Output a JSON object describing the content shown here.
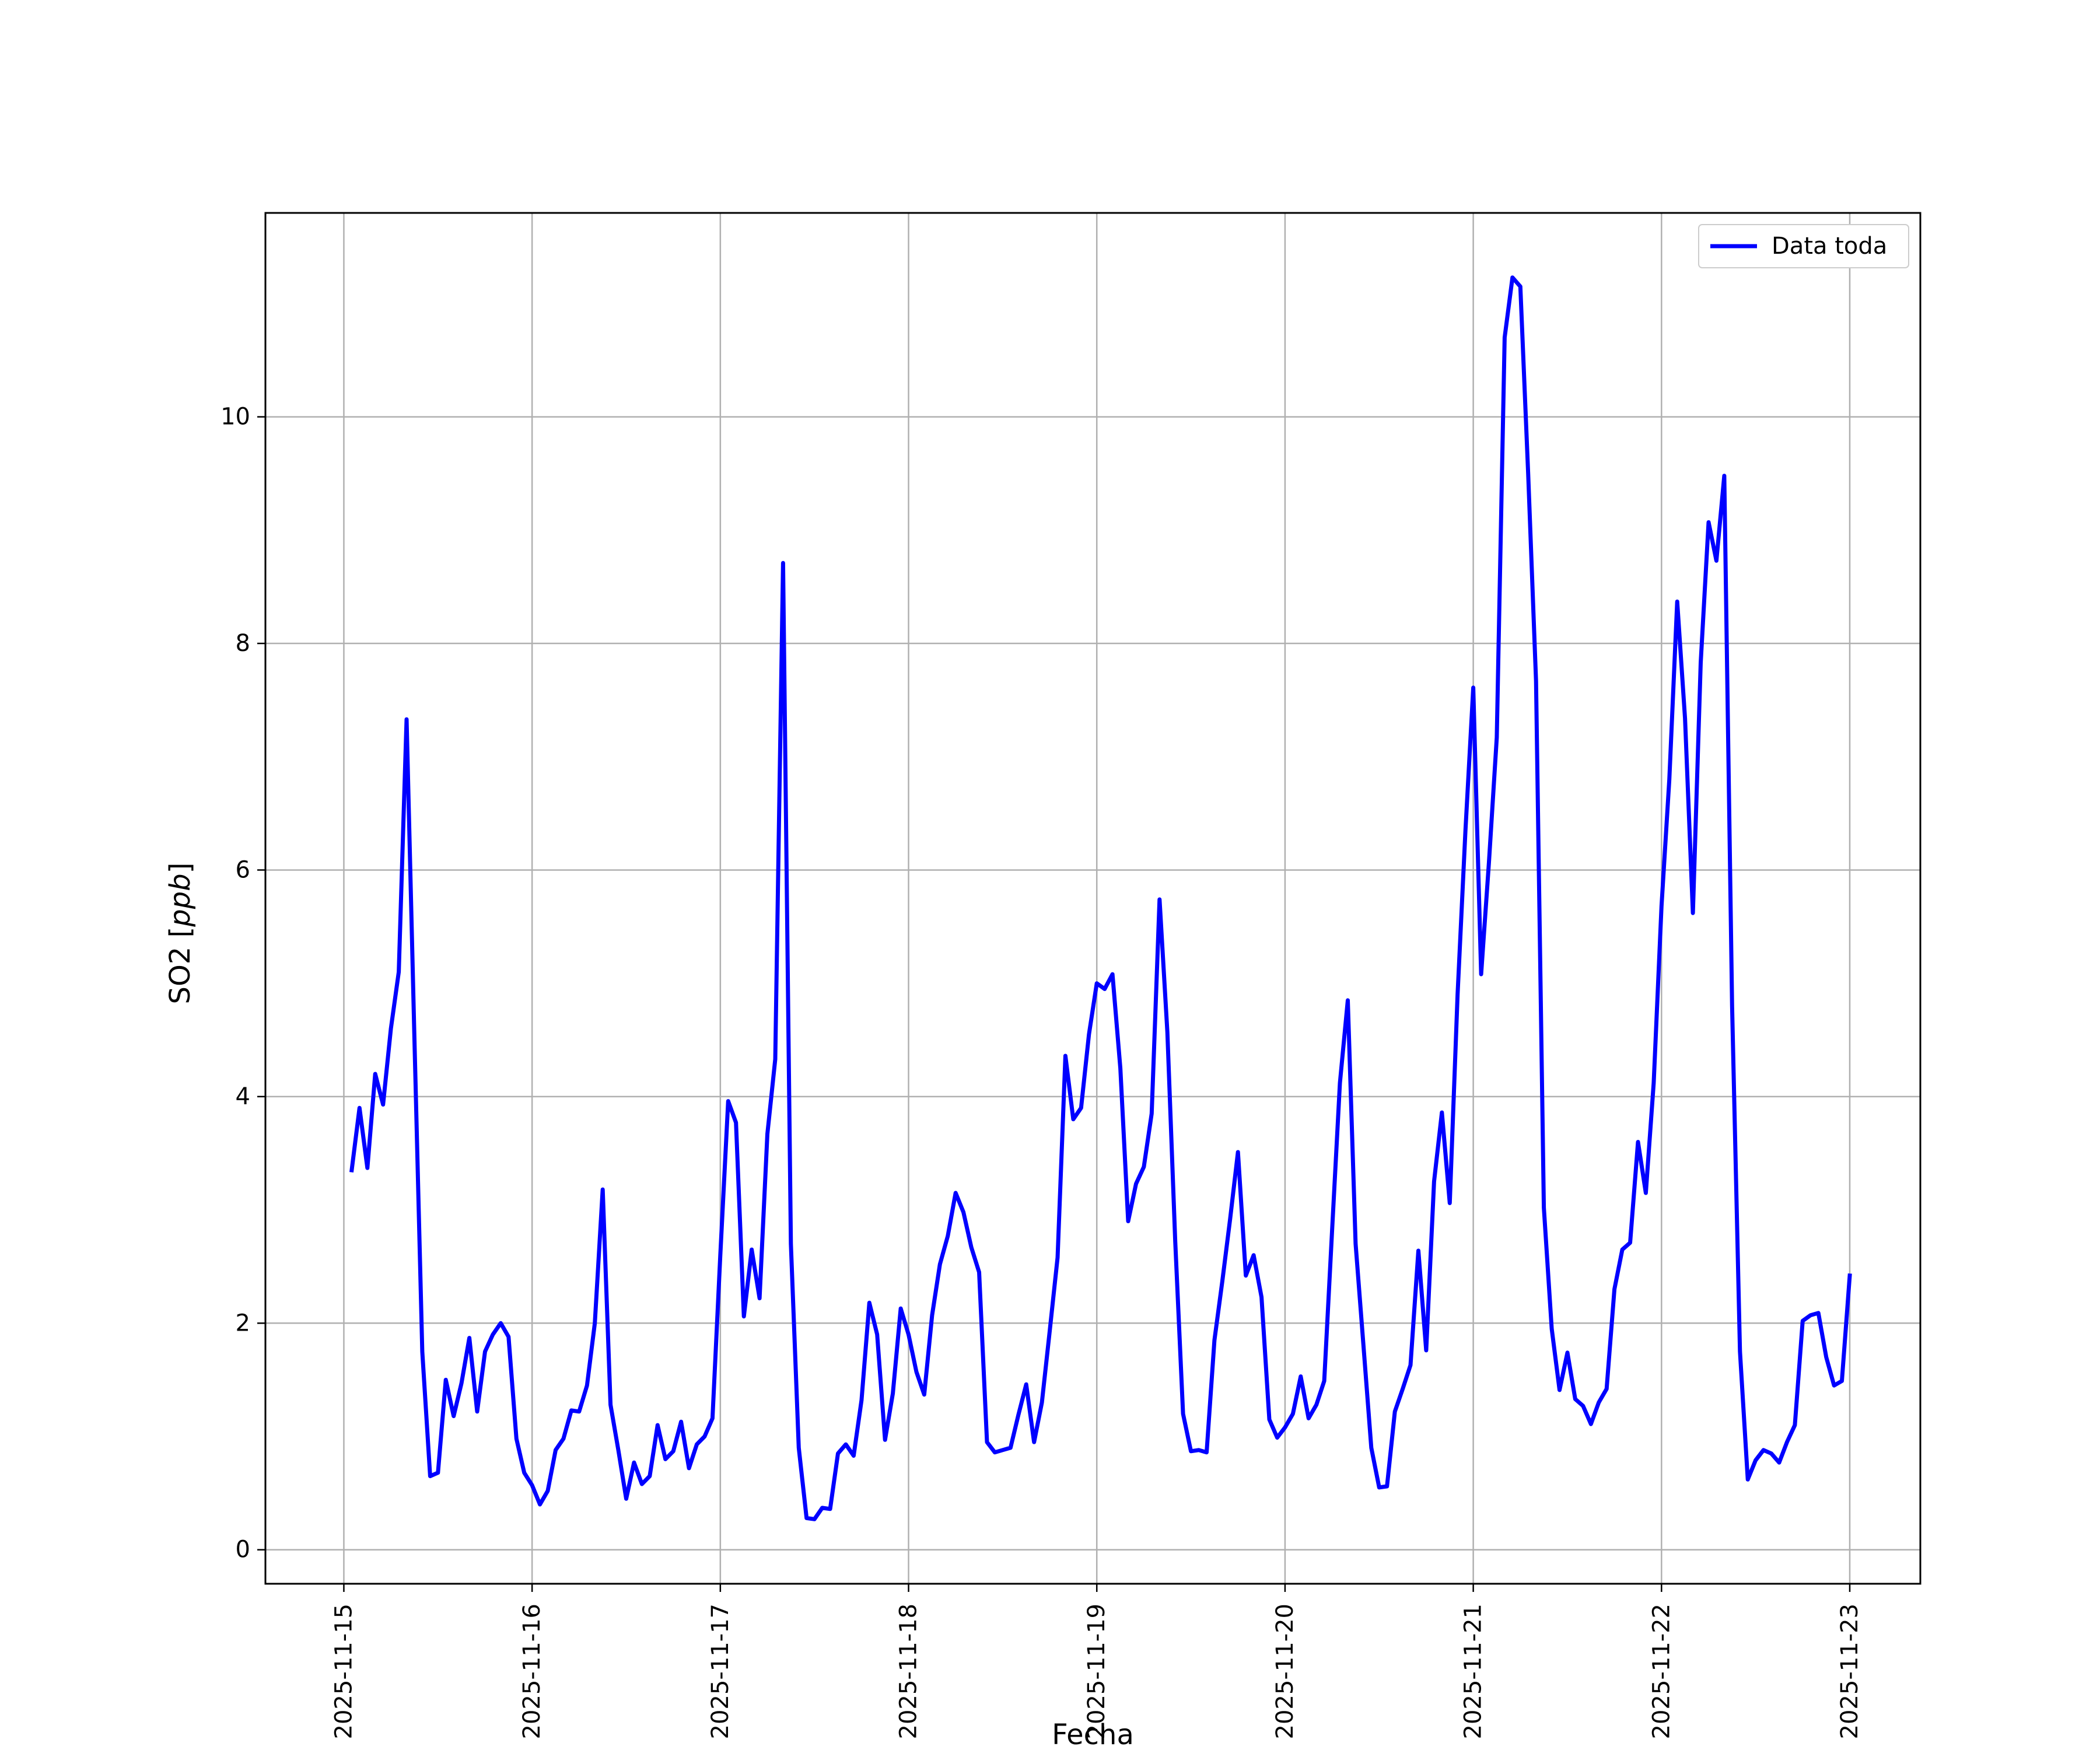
{
  "chart_data": {
    "type": "line",
    "title": "",
    "xlabel": "Fecha",
    "ylabel_main": "SO2 [",
    "ylabel_italic": "ppb",
    "ylabel_end": "]",
    "x_tick_labels": [
      "2025-11-15",
      "2025-11-16",
      "2025-11-17",
      "2025-11-18",
      "2025-11-19",
      "2025-11-20",
      "2025-11-21",
      "2025-11-22",
      "2025-11-23"
    ],
    "y_ticks": [
      0,
      2,
      4,
      6,
      8,
      10
    ],
    "y_tick_labels": [
      "0",
      "2",
      "4",
      "6",
      "8",
      "10"
    ],
    "xlim": [
      "2025-11-14 14:00",
      "2025-11-23 09:00"
    ],
    "ylim": [
      -0.3,
      11.8
    ],
    "grid": true,
    "legend": {
      "placement": "top-right",
      "entries": [
        "Data toda"
      ]
    },
    "colors": {
      "series": "#0000ff",
      "grid": "#b0b0b0",
      "axes": "#000000"
    },
    "series": [
      {
        "name": "Data toda",
        "x": [
          "2025-11-15 01:00",
          "2025-11-15 02:00",
          "2025-11-15 03:00",
          "2025-11-15 04:00",
          "2025-11-15 05:00",
          "2025-11-15 06:00",
          "2025-11-15 07:00",
          "2025-11-15 08:00",
          "2025-11-15 09:00",
          "2025-11-15 10:00",
          "2025-11-15 11:00",
          "2025-11-15 12:00",
          "2025-11-15 13:00",
          "2025-11-15 14:00",
          "2025-11-15 15:00",
          "2025-11-15 16:00",
          "2025-11-15 17:00",
          "2025-11-15 18:00",
          "2025-11-15 19:00",
          "2025-11-15 20:00",
          "2025-11-15 21:00",
          "2025-11-15 22:00",
          "2025-11-15 23:00",
          "2025-11-16 00:00",
          "2025-11-16 01:00",
          "2025-11-16 02:00",
          "2025-11-16 03:00",
          "2025-11-16 04:00",
          "2025-11-16 05:00",
          "2025-11-16 06:00",
          "2025-11-16 07:00",
          "2025-11-16 08:00",
          "2025-11-16 09:00",
          "2025-11-16 10:00",
          "2025-11-16 11:00",
          "2025-11-16 12:00",
          "2025-11-16 13:00",
          "2025-11-16 14:00",
          "2025-11-16 15:00",
          "2025-11-16 16:00",
          "2025-11-16 17:00",
          "2025-11-16 18:00",
          "2025-11-16 19:00",
          "2025-11-16 20:00",
          "2025-11-16 21:00",
          "2025-11-16 22:00",
          "2025-11-16 23:00",
          "2025-11-17 00:00",
          "2025-11-17 01:00",
          "2025-11-17 02:00",
          "2025-11-17 03:00",
          "2025-11-17 04:00",
          "2025-11-17 05:00",
          "2025-11-17 06:00",
          "2025-11-17 07:00",
          "2025-11-17 08:00",
          "2025-11-17 09:00",
          "2025-11-17 10:00",
          "2025-11-17 11:00",
          "2025-11-17 12:00",
          "2025-11-17 13:00",
          "2025-11-17 14:00",
          "2025-11-17 15:00",
          "2025-11-17 16:00",
          "2025-11-17 17:00",
          "2025-11-17 18:00",
          "2025-11-17 19:00",
          "2025-11-17 20:00",
          "2025-11-17 21:00",
          "2025-11-17 22:00",
          "2025-11-17 23:00",
          "2025-11-18 00:00",
          "2025-11-18 01:00",
          "2025-11-18 02:00",
          "2025-11-18 03:00",
          "2025-11-18 04:00",
          "2025-11-18 05:00",
          "2025-11-18 06:00",
          "2025-11-18 07:00",
          "2025-11-18 08:00",
          "2025-11-18 09:00",
          "2025-11-18 10:00",
          "2025-11-18 11:00",
          "2025-11-18 12:00",
          "2025-11-18 13:00",
          "2025-11-18 14:00",
          "2025-11-18 15:00",
          "2025-11-18 16:00",
          "2025-11-18 17:00",
          "2025-11-18 18:00",
          "2025-11-18 19:00",
          "2025-11-18 20:00",
          "2025-11-18 21:00",
          "2025-11-18 22:00",
          "2025-11-18 23:00",
          "2025-11-19 00:00",
          "2025-11-19 01:00",
          "2025-11-19 02:00",
          "2025-11-19 03:00",
          "2025-11-19 04:00",
          "2025-11-19 05:00",
          "2025-11-19 06:00",
          "2025-11-19 07:00",
          "2025-11-19 08:00",
          "2025-11-19 09:00",
          "2025-11-19 10:00",
          "2025-11-19 11:00",
          "2025-11-19 12:00",
          "2025-11-19 13:00",
          "2025-11-19 14:00",
          "2025-11-19 15:00",
          "2025-11-19 16:00",
          "2025-11-19 17:00",
          "2025-11-19 18:00",
          "2025-11-19 19:00",
          "2025-11-19 20:00",
          "2025-11-19 21:00",
          "2025-11-19 22:00",
          "2025-11-19 23:00",
          "2025-11-20 00:00",
          "2025-11-20 01:00",
          "2025-11-20 02:00",
          "2025-11-20 03:00",
          "2025-11-20 04:00",
          "2025-11-20 05:00",
          "2025-11-20 06:00",
          "2025-11-20 07:00",
          "2025-11-20 08:00",
          "2025-11-20 09:00",
          "2025-11-20 10:00",
          "2025-11-20 11:00",
          "2025-11-20 12:00",
          "2025-11-20 13:00",
          "2025-11-20 14:00",
          "2025-11-20 15:00",
          "2025-11-20 16:00",
          "2025-11-20 17:00",
          "2025-11-20 18:00",
          "2025-11-20 19:00",
          "2025-11-20 20:00",
          "2025-11-20 21:00",
          "2025-11-20 22:00",
          "2025-11-20 23:00",
          "2025-11-21 00:00",
          "2025-11-21 01:00",
          "2025-11-21 02:00",
          "2025-11-21 03:00",
          "2025-11-21 04:00",
          "2025-11-21 05:00",
          "2025-11-21 06:00",
          "2025-11-21 07:00",
          "2025-11-21 08:00",
          "2025-11-21 09:00",
          "2025-11-21 10:00",
          "2025-11-21 11:00",
          "2025-11-21 12:00",
          "2025-11-21 13:00",
          "2025-11-21 14:00",
          "2025-11-21 15:00",
          "2025-11-21 16:00",
          "2025-11-21 17:00",
          "2025-11-21 18:00",
          "2025-11-21 19:00",
          "2025-11-21 20:00",
          "2025-11-21 21:00",
          "2025-11-21 22:00",
          "2025-11-21 23:00",
          "2025-11-22 00:00",
          "2025-11-22 01:00",
          "2025-11-22 02:00",
          "2025-11-22 03:00",
          "2025-11-22 04:00",
          "2025-11-22 05:00",
          "2025-11-22 06:00",
          "2025-11-22 07:00",
          "2025-11-22 08:00",
          "2025-11-22 09:00",
          "2025-11-22 10:00",
          "2025-11-22 11:00",
          "2025-11-22 12:00",
          "2025-11-22 13:00",
          "2025-11-22 14:00",
          "2025-11-22 15:00",
          "2025-11-22 16:00",
          "2025-11-22 17:00",
          "2025-11-22 18:00",
          "2025-11-22 19:00",
          "2025-11-22 20:00",
          "2025-11-22 21:00",
          "2025-11-22 22:00",
          "2025-11-22 23:00",
          "2025-11-23 00:00"
        ],
        "values": [
          3.35,
          3.9,
          3.37,
          4.2,
          3.93,
          4.6,
          5.1,
          7.33,
          4.5,
          1.75,
          0.65,
          0.68,
          1.5,
          1.18,
          1.47,
          1.87,
          1.22,
          1.75,
          1.9,
          2.0,
          1.88,
          0.98,
          0.68,
          0.57,
          0.4,
          0.52,
          0.88,
          0.98,
          1.23,
          1.22,
          1.45,
          2.0,
          3.18,
          1.28,
          0.88,
          0.45,
          0.77,
          0.58,
          0.65,
          1.1,
          0.8,
          0.87,
          1.13,
          0.72,
          0.93,
          1.0,
          1.16,
          2.6,
          3.96,
          3.77,
          2.06,
          2.65,
          2.22,
          3.67,
          4.33,
          8.71,
          2.7,
          0.9,
          0.28,
          0.27,
          0.37,
          0.36,
          0.85,
          0.93,
          0.83,
          1.32,
          2.18,
          1.9,
          0.97,
          1.38,
          2.13,
          1.9,
          1.57,
          1.37,
          2.07,
          2.52,
          2.77,
          3.15,
          2.98,
          2.67,
          2.45,
          0.95,
          0.86,
          0.88,
          0.9,
          1.19,
          1.46,
          0.95,
          1.3,
          1.93,
          2.58,
          4.36,
          3.8,
          3.9,
          4.55,
          5.0,
          4.95,
          5.08,
          4.25,
          2.9,
          3.23,
          3.38,
          3.85,
          5.74,
          4.57,
          2.72,
          1.2,
          0.87,
          0.88,
          0.86,
          1.85,
          2.37,
          2.92,
          3.51,
          2.42,
          2.6,
          2.23,
          1.15,
          0.99,
          1.08,
          1.2,
          1.53,
          1.16,
          1.28,
          1.49,
          2.82,
          4.12,
          4.85,
          2.7,
          1.8,
          0.9,
          0.55,
          0.56,
          1.22,
          1.42,
          1.63,
          2.64,
          1.76,
          3.25,
          3.86,
          3.06,
          4.9,
          6.35,
          7.61,
          5.08,
          6.07,
          7.17,
          10.7,
          11.23,
          11.15,
          9.5,
          7.67,
          3.02,
          1.95,
          1.41,
          1.74,
          1.33,
          1.27,
          1.11,
          1.3,
          1.42,
          2.3,
          2.65,
          2.71,
          3.6,
          3.15,
          4.12,
          5.68,
          6.8,
          8.37,
          7.34,
          5.62,
          7.83,
          9.07,
          8.73,
          9.48,
          4.8,
          1.75,
          0.62,
          0.79,
          0.88,
          0.85,
          0.77,
          0.95,
          1.1,
          2.02,
          2.07,
          2.09,
          1.7,
          1.45,
          1.49,
          2.42
        ]
      }
    ]
  }
}
